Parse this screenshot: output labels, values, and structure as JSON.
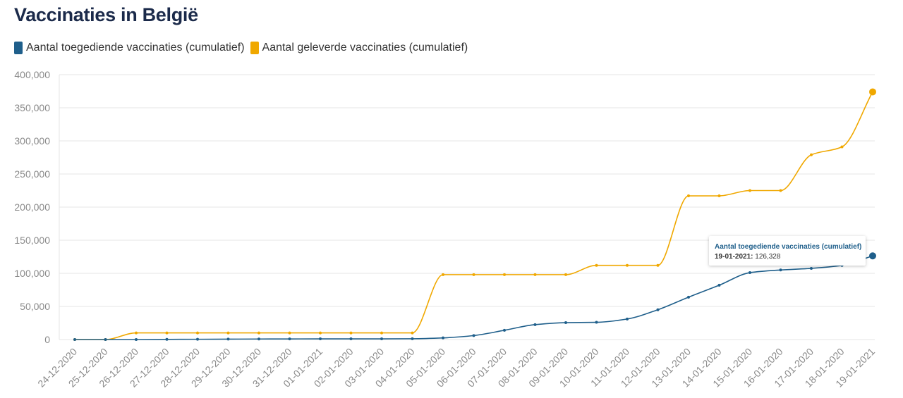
{
  "page": {
    "title": "Vaccinaties in België"
  },
  "colors": {
    "administered": "#1f5f8b",
    "delivered": "#f0a800",
    "grid": "#e6e6e6",
    "axis_text": "#8a8a8a"
  },
  "legend": [
    {
      "label": "Aantal toegediende vaccinaties (cumulatief)",
      "color": "#1f5f8b"
    },
    {
      "label": "Aantal geleverde vaccinaties (cumulatief)",
      "color": "#f0a800"
    }
  ],
  "tooltip": {
    "series": "Aantal toegediende vaccinaties (cumulatief)",
    "date": "19-01-2021:",
    "value": "126,328"
  },
  "chart_data": {
    "type": "line",
    "title": "Vaccinaties in België",
    "xlabel": "",
    "ylabel": "",
    "ylim": [
      0,
      400000
    ],
    "yticks": [
      0,
      50000,
      100000,
      150000,
      200000,
      250000,
      300000,
      350000,
      400000
    ],
    "ytick_labels": [
      "0",
      "50,000",
      "100,000",
      "150,000",
      "200,000",
      "250,000",
      "300,000",
      "350,000",
      "400,000"
    ],
    "grid": true,
    "legend_position": "top-left",
    "categories": [
      "24-12-2020",
      "25-12-2020",
      "26-12-2020",
      "27-12-2020",
      "28-12-2020",
      "29-12-2020",
      "30-12-2020",
      "31-12-2020",
      "01-01-2021",
      "02-01-2020",
      "03-01-2020",
      "04-01-2020",
      "05-01-2020",
      "06-01-2020",
      "07-01-2020",
      "08-01-2020",
      "09-01-2020",
      "10-01-2020",
      "11-01-2020",
      "12-01-2020",
      "13-01-2020",
      "14-01-2020",
      "15-01-2020",
      "16-01-2020",
      "17-01-2020",
      "18-01-2020",
      "19-01-2021"
    ],
    "series": [
      {
        "name": "Aantal toegediende vaccinaties (cumulatief)",
        "color": "#1f5f8b",
        "values": [
          0,
          0,
          0,
          200,
          400,
          600,
          800,
          900,
          1000,
          1000,
          1000,
          1200,
          2500,
          6000,
          14000,
          22500,
          25500,
          26000,
          31000,
          45000,
          64000,
          82000,
          101000,
          105000,
          107500,
          112000,
          126328
        ]
      },
      {
        "name": "Aantal geleverde vaccinaties (cumulatief)",
        "color": "#f0a800",
        "values": [
          0,
          0,
          10000,
          10000,
          10000,
          10000,
          10000,
          10000,
          10000,
          10000,
          10000,
          10000,
          98000,
          98000,
          98000,
          98000,
          98000,
          112000,
          112000,
          112000,
          217000,
          217000,
          225000,
          225000,
          279000,
          291000,
          374000
        ]
      }
    ]
  }
}
